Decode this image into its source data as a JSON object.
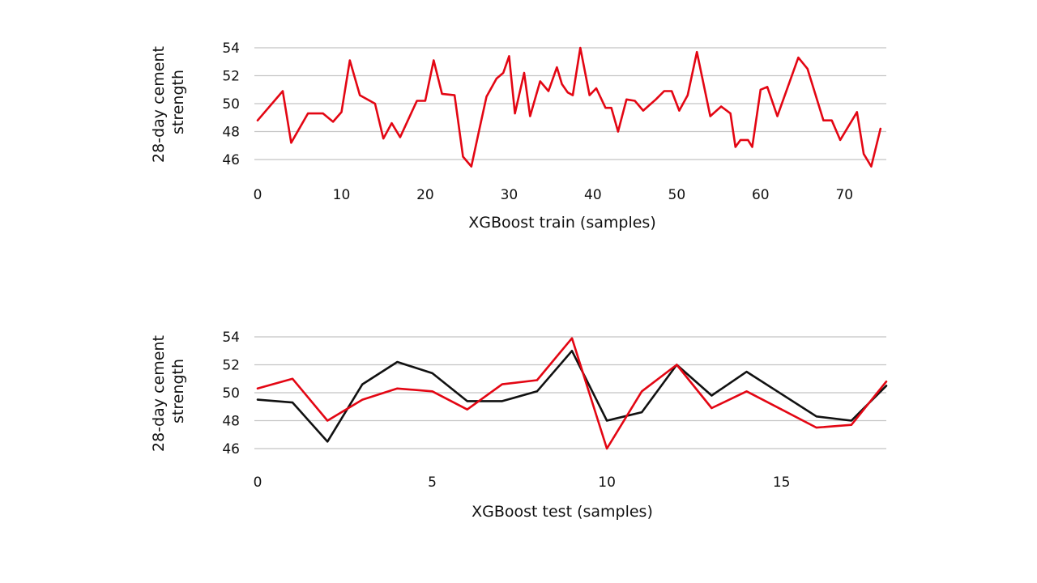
{
  "chart_data": [
    {
      "type": "line",
      "xlabel": "XGBoost train (samples)",
      "ylabel": [
        "28-day cement",
        "strength"
      ],
      "xlim": [
        0,
        75
      ],
      "ylim": [
        45,
        55
      ],
      "xticks": [
        0,
        10,
        20,
        30,
        40,
        50,
        60,
        70
      ],
      "yticks": [
        46,
        48,
        50,
        52,
        54
      ],
      "grid": true,
      "series": [
        {
          "color": "#e30613",
          "values": [
            [
              0,
              48.8
            ],
            [
              3,
              50.9
            ],
            [
              4,
              47.2
            ],
            [
              6,
              49.3
            ],
            [
              7.8,
              49.3
            ],
            [
              9,
              48.7
            ],
            [
              10,
              49.4
            ],
            [
              11,
              53.1
            ],
            [
              12.2,
              50.6
            ],
            [
              14,
              50.0
            ],
            [
              15,
              47.5
            ],
            [
              16,
              48.6
            ],
            [
              17,
              47.6
            ],
            [
              19,
              50.2
            ],
            [
              20,
              50.2
            ],
            [
              21,
              53.1
            ],
            [
              22,
              50.7
            ],
            [
              23.5,
              50.6
            ],
            [
              24.5,
              46.2
            ],
            [
              25.5,
              45.5
            ],
            [
              26.5,
              48.3
            ],
            [
              27.3,
              50.5
            ],
            [
              28.5,
              51.8
            ],
            [
              29.3,
              52.2
            ],
            [
              30,
              53.4
            ],
            [
              30.7,
              49.3
            ],
            [
              31.8,
              52.2
            ],
            [
              32.5,
              49.1
            ],
            [
              33.7,
              51.6
            ],
            [
              34.7,
              50.9
            ],
            [
              35.7,
              52.6
            ],
            [
              36.3,
              51.4
            ],
            [
              37,
              50.8
            ],
            [
              37.6,
              50.6
            ],
            [
              38.5,
              54.0
            ],
            [
              39.6,
              50.6
            ],
            [
              40.4,
              51.1
            ],
            [
              41.5,
              49.7
            ],
            [
              42.2,
              49.7
            ],
            [
              43,
              48.0
            ],
            [
              44,
              50.3
            ],
            [
              45,
              50.2
            ],
            [
              46,
              49.5
            ],
            [
              47.5,
              50.3
            ],
            [
              48.5,
              50.9
            ],
            [
              49.4,
              50.9
            ],
            [
              50.3,
              49.5
            ],
            [
              51.3,
              50.6
            ],
            [
              52.4,
              53.7
            ],
            [
              54,
              49.1
            ],
            [
              55.3,
              49.8
            ],
            [
              56.4,
              49.3
            ],
            [
              57,
              46.9
            ],
            [
              57.6,
              47.4
            ],
            [
              58.5,
              47.4
            ],
            [
              59,
              46.9
            ],
            [
              60,
              51.0
            ],
            [
              60.8,
              51.2
            ],
            [
              62,
              49.1
            ],
            [
              64.5,
              53.3
            ],
            [
              65.6,
              52.5
            ],
            [
              67.5,
              48.8
            ],
            [
              68.5,
              48.8
            ],
            [
              69.5,
              47.4
            ],
            [
              71.5,
              49.4
            ],
            [
              72.3,
              46.4
            ],
            [
              73.2,
              45.5
            ],
            [
              74.3,
              48.2
            ]
          ]
        }
      ]
    },
    {
      "type": "line",
      "xlabel": "XGBoost test (samples)",
      "ylabel": [
        "28-day cement",
        "strength"
      ],
      "xlim": [
        0,
        18
      ],
      "ylim": [
        45,
        55
      ],
      "xticks": [
        0,
        5,
        10,
        15
      ],
      "yticks": [
        46,
        48,
        50,
        52,
        54
      ],
      "grid": true,
      "series": [
        {
          "color": "#111111",
          "values": [
            [
              0,
              49.5
            ],
            [
              1,
              49.3
            ],
            [
              2,
              46.5
            ],
            [
              3,
              50.6
            ],
            [
              4,
              52.2
            ],
            [
              5,
              51.4
            ],
            [
              6,
              49.4
            ],
            [
              7,
              49.4
            ],
            [
              8,
              50.1
            ],
            [
              9,
              53.0
            ],
            [
              10,
              48.0
            ],
            [
              11,
              48.6
            ],
            [
              12,
              52.0
            ],
            [
              13,
              49.8
            ],
            [
              14,
              51.5
            ],
            [
              15,
              49.9
            ],
            [
              16,
              48.3
            ],
            [
              17,
              48.0
            ],
            [
              18,
              50.5
            ]
          ]
        },
        {
          "color": "#e30613",
          "values": [
            [
              0,
              50.3
            ],
            [
              1,
              51.0
            ],
            [
              2,
              48.0
            ],
            [
              3,
              49.5
            ],
            [
              4,
              50.3
            ],
            [
              5,
              50.1
            ],
            [
              6,
              48.8
            ],
            [
              7,
              50.6
            ],
            [
              8,
              50.9
            ],
            [
              9,
              53.9
            ],
            [
              10,
              46.0
            ],
            [
              11,
              50.1
            ],
            [
              12,
              52.0
            ],
            [
              13,
              48.9
            ],
            [
              14,
              50.1
            ],
            [
              15,
              48.8
            ],
            [
              16,
              47.5
            ],
            [
              17,
              47.7
            ],
            [
              18,
              50.8
            ]
          ]
        }
      ]
    }
  ]
}
